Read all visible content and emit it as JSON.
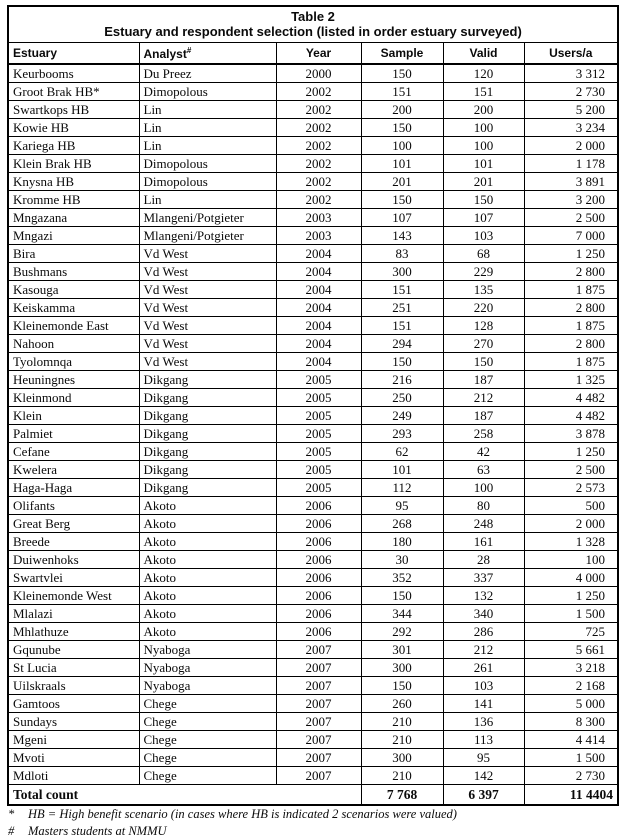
{
  "title": {
    "line1": "Table 2",
    "line2": "Estuary and respondent selection (listed in order estuary surveyed)"
  },
  "table": {
    "columns": [
      {
        "label": "Estuary",
        "sup": "",
        "align": "left"
      },
      {
        "label": "Analyst",
        "sup": "#",
        "align": "left"
      },
      {
        "label": "Year",
        "sup": "",
        "align": "center"
      },
      {
        "label": "Sample",
        "sup": "",
        "align": "center"
      },
      {
        "label": "Valid",
        "sup": "",
        "align": "center"
      },
      {
        "label": "Users/a",
        "sup": "",
        "align": "center"
      }
    ],
    "rows": [
      [
        "Keurbooms",
        "Du Preez",
        "2000",
        "150",
        "120",
        "3 312"
      ],
      [
        "Groot Brak HB*",
        "Dimopolous",
        "2002",
        "151",
        "151",
        "2 730"
      ],
      [
        "Swartkops HB",
        "Lin",
        "2002",
        "200",
        "200",
        "5 200"
      ],
      [
        "Kowie HB",
        "Lin",
        "2002",
        "150",
        "100",
        "3 234"
      ],
      [
        "Kariega HB",
        "Lin",
        "2002",
        "100",
        "100",
        "2 000"
      ],
      [
        "Klein Brak HB",
        "Dimopolous",
        "2002",
        "101",
        "101",
        "1 178"
      ],
      [
        "Knysna HB",
        "Dimopolous",
        "2002",
        "201",
        "201",
        "3 891"
      ],
      [
        "Kromme HB",
        "Lin",
        "2002",
        "150",
        "150",
        "3 200"
      ],
      [
        "Mngazana",
        "Mlangeni/Potgieter",
        "2003",
        "107",
        "107",
        "2 500"
      ],
      [
        "Mngazi",
        "Mlangeni/Potgieter",
        "2003",
        "143",
        "103",
        "7 000"
      ],
      [
        "Bira",
        "Vd West",
        "2004",
        "83",
        "68",
        "1 250"
      ],
      [
        "Bushmans",
        "Vd West",
        "2004",
        "300",
        "229",
        "2 800"
      ],
      [
        "Kasouga",
        "Vd West",
        "2004",
        "151",
        "135",
        "1 875"
      ],
      [
        "Keiskamma",
        "Vd West",
        "2004",
        "251",
        "220",
        "2 800"
      ],
      [
        "Kleinemonde East",
        "Vd West",
        "2004",
        "151",
        "128",
        "1 875"
      ],
      [
        "Nahoon",
        "Vd West",
        "2004",
        "294",
        "270",
        "2 800"
      ],
      [
        "Tyolomnqa",
        "Vd West",
        "2004",
        "150",
        "150",
        "1 875"
      ],
      [
        "Heuningnes",
        "Dikgang",
        "2005",
        "216",
        "187",
        "1 325"
      ],
      [
        "Kleinmond",
        "Dikgang",
        "2005",
        "250",
        "212",
        "4 482"
      ],
      [
        "Klein",
        "Dikgang",
        "2005",
        "249",
        "187",
        "4 482"
      ],
      [
        "Palmiet",
        "Dikgang",
        "2005",
        "293",
        "258",
        "3 878"
      ],
      [
        "Cefane",
        "Dikgang",
        "2005",
        "62",
        "42",
        "1 250"
      ],
      [
        "Kwelera",
        "Dikgang",
        "2005",
        "101",
        "63",
        "2 500"
      ],
      [
        "Haga-Haga",
        "Dikgang",
        "2005",
        "112",
        "100",
        "2 573"
      ],
      [
        "Olifants",
        "Akoto",
        "2006",
        "95",
        "80",
        "500"
      ],
      [
        "Great Berg",
        "Akoto",
        "2006",
        "268",
        "248",
        "2 000"
      ],
      [
        "Breede",
        "Akoto",
        "2006",
        "180",
        "161",
        "1 328"
      ],
      [
        "Duiwenhoks",
        "Akoto",
        "2006",
        "30",
        "28",
        "100"
      ],
      [
        "Swartvlei",
        "Akoto",
        "2006",
        "352",
        "337",
        "4 000"
      ],
      [
        "Kleinemonde West",
        "Akoto",
        "2006",
        "150",
        "132",
        "1 250"
      ],
      [
        "Mlalazi",
        "Akoto",
        "2006",
        "344",
        "340",
        "1 500"
      ],
      [
        "Mhlathuze",
        "Akoto",
        "2006",
        "292",
        "286",
        "725"
      ],
      [
        "Gqunube",
        "Nyaboga",
        "2007",
        "301",
        "212",
        "5 661"
      ],
      [
        "St Lucia",
        "Nyaboga",
        "2007",
        "300",
        "261",
        "3 218"
      ],
      [
        "Uilskraals",
        "Nyaboga",
        "2007",
        "150",
        "103",
        "2 168"
      ],
      [
        "Gamtoos",
        "Chege",
        "2007",
        "260",
        "141",
        "5 000"
      ],
      [
        "Sundays",
        "Chege",
        "2007",
        "210",
        "136",
        "8 300"
      ],
      [
        "Mgeni",
        "Chege",
        "2007",
        "210",
        "113",
        "4 414"
      ],
      [
        "Mvoti",
        "Chege",
        "2007",
        "300",
        "95",
        "1 500"
      ],
      [
        "Mdloti",
        "Chege",
        "2007",
        "210",
        "142",
        "2 730"
      ]
    ],
    "total_row": {
      "label": "Total count",
      "sample": "7 768",
      "valid": "6 397",
      "users": "11 4404"
    }
  },
  "footnotes": [
    {
      "marker": "*",
      "text": "HB = High benefit scenario (in cases where HB is indicated 2 scenarios were valued)"
    },
    {
      "marker": "#",
      "text": "Masters students at NMMU"
    }
  ],
  "colors": {
    "border": "#000000",
    "text": "#0a0a0a",
    "background": "#ffffff"
  }
}
